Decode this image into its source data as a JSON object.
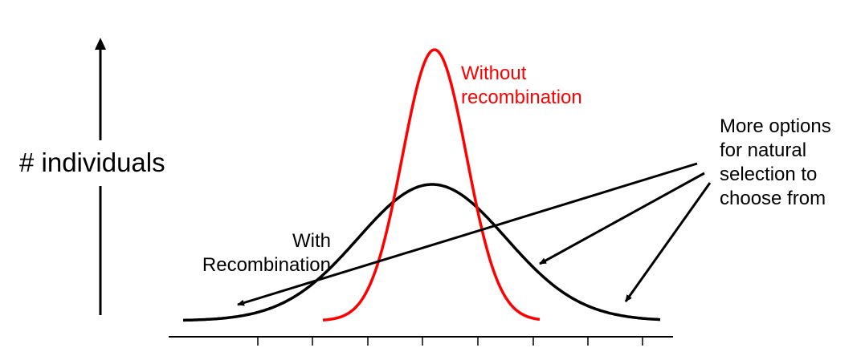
{
  "y_axis_label": "# individuals",
  "curves": {
    "without": {
      "lines": [
        "Without",
        "recombination"
      ],
      "color": "#ff0000"
    },
    "with": {
      "lines": [
        "With",
        "Recombination"
      ],
      "color": "#000000"
    }
  },
  "annotation": {
    "lines": [
      "More options",
      "for natural",
      "selection to",
      "choose from"
    ]
  }
}
